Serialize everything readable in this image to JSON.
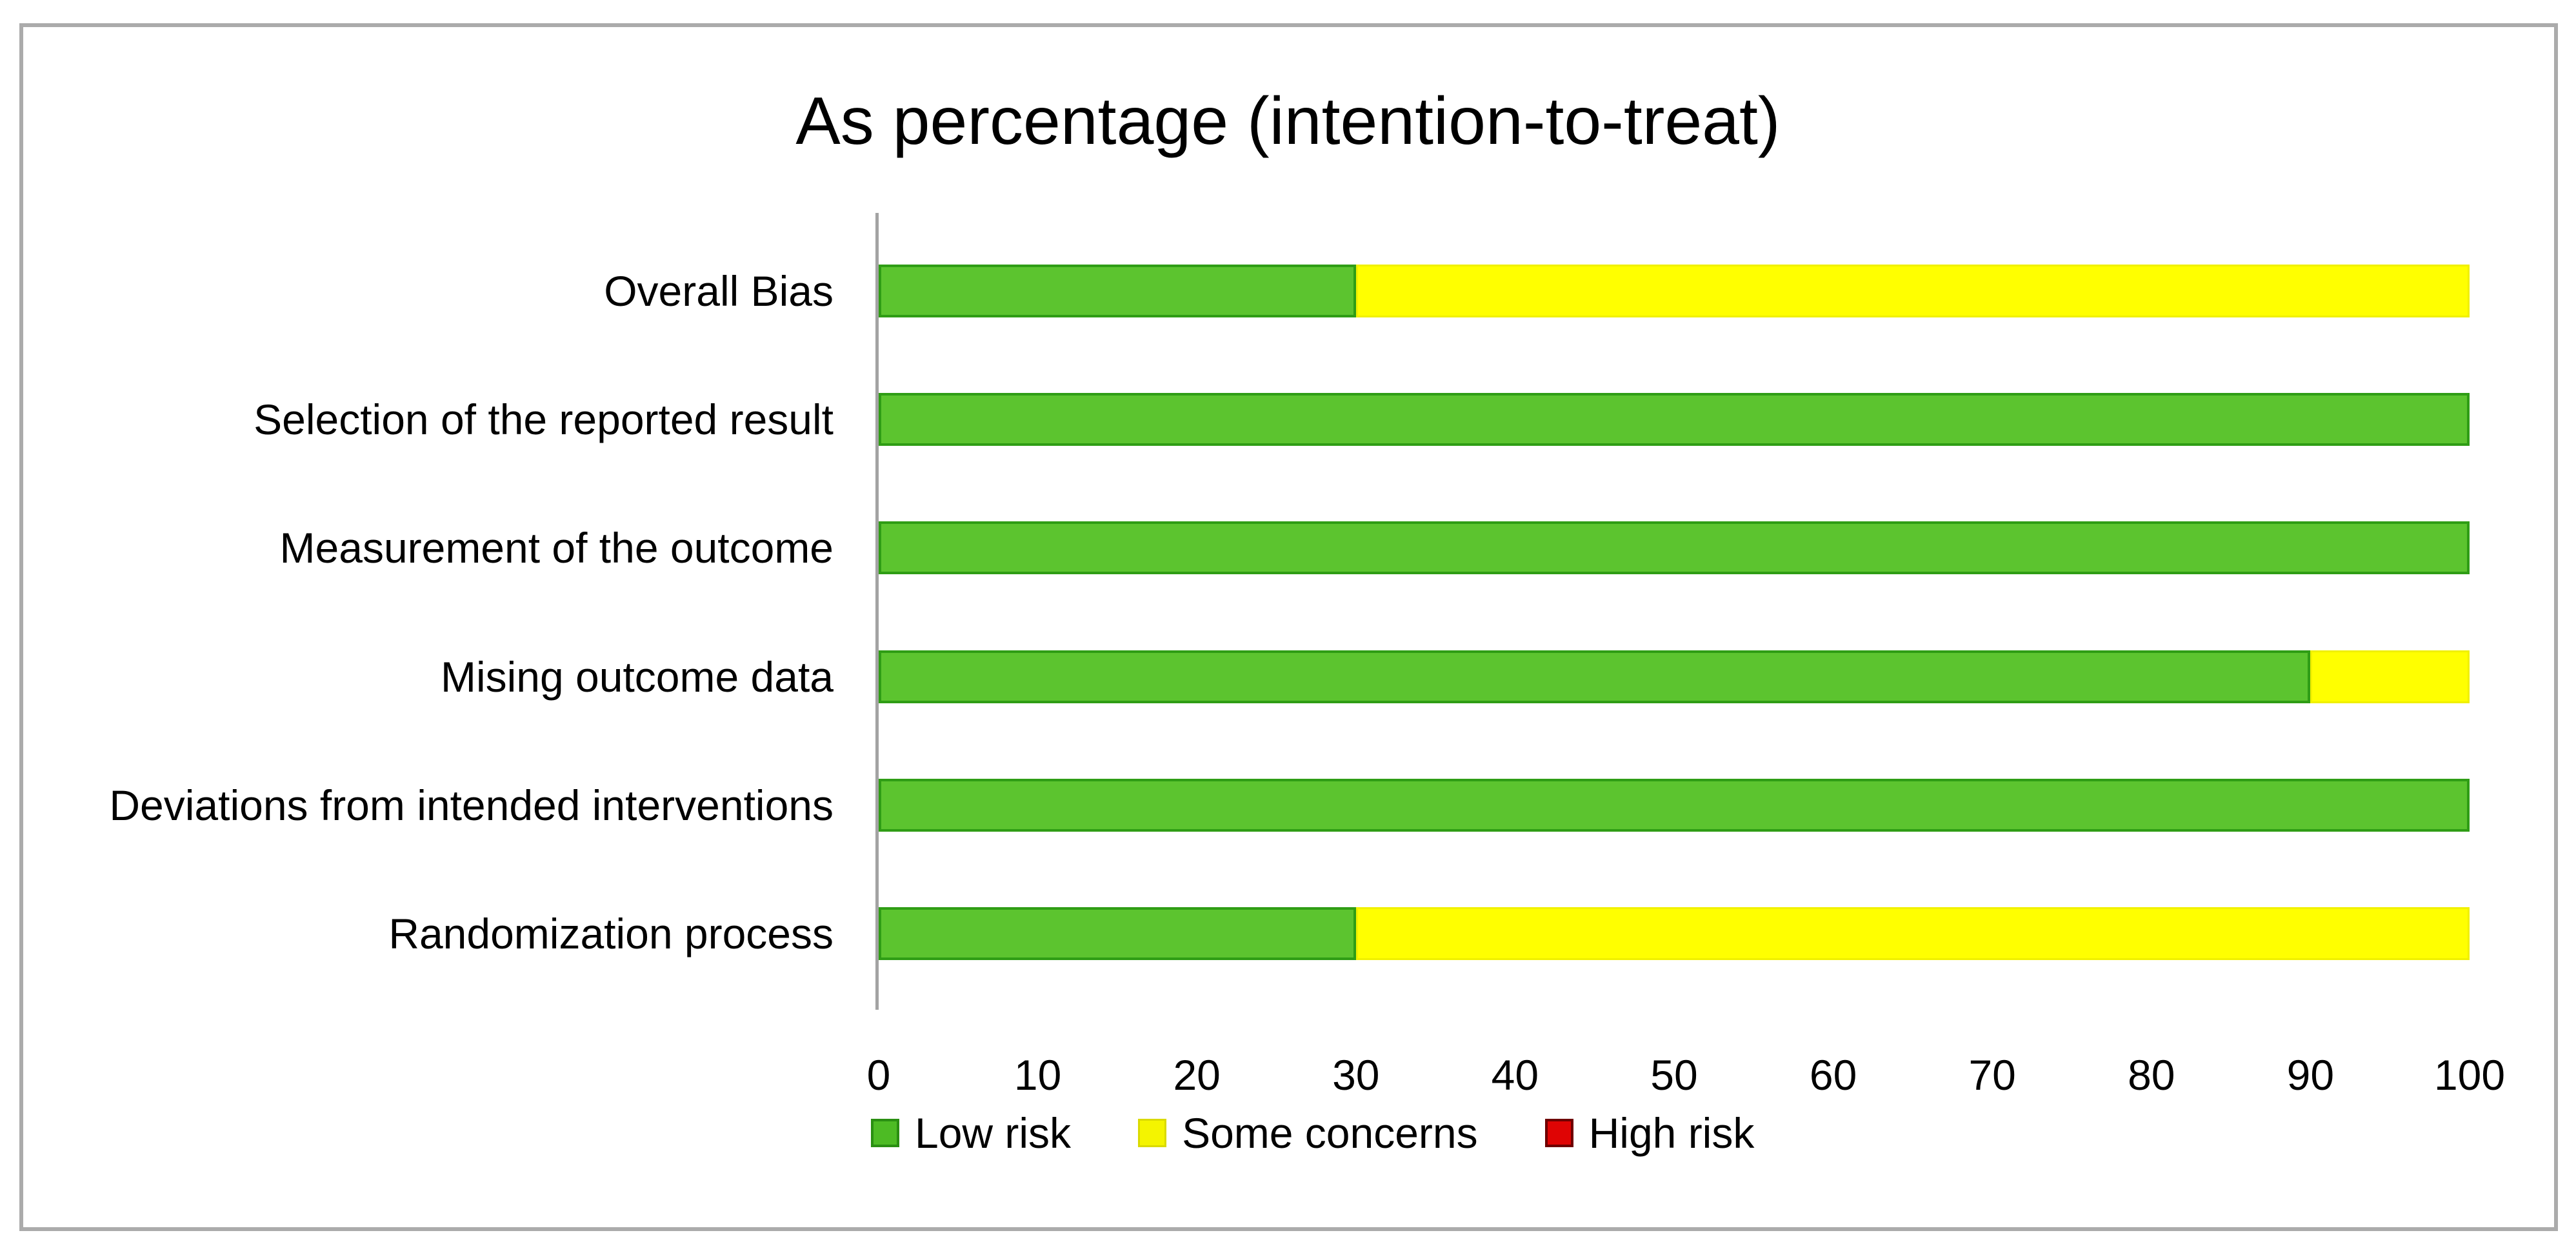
{
  "frame": {
    "border_color": "#ababab",
    "background": "#ffffff"
  },
  "chart_data": {
    "type": "bar",
    "orientation": "horizontal-stacked",
    "title": "As percentage (intention-to-treat)",
    "categories": [
      "Overall Bias",
      "Selection of the reported result",
      "Measurement of the outcome",
      "Mising outcome data",
      "Deviations from intended interventions",
      "Randomization process"
    ],
    "series": [
      {
        "name": "Low risk",
        "color": "#5cc42f",
        "border_color": "#2f9d15",
        "values": [
          30,
          100,
          100,
          90,
          100,
          30
        ]
      },
      {
        "name": "Some concerns",
        "color": "#ffff00",
        "border_color": "#f0f000",
        "values": [
          70,
          0,
          0,
          10,
          0,
          70
        ]
      },
      {
        "name": "High risk",
        "color": "#df0404",
        "border_color": "#8e0000",
        "values": [
          0,
          0,
          0,
          0,
          0,
          0
        ]
      }
    ],
    "xlabel": "",
    "ylabel": "",
    "xlim": [
      0,
      100
    ],
    "x_ticks": [
      0,
      10,
      20,
      30,
      40,
      50,
      60,
      70,
      80,
      90,
      100
    ],
    "grid": false,
    "legend_position": "bottom",
    "axis_color": "#a3a3a3",
    "text_color": "#000000"
  }
}
